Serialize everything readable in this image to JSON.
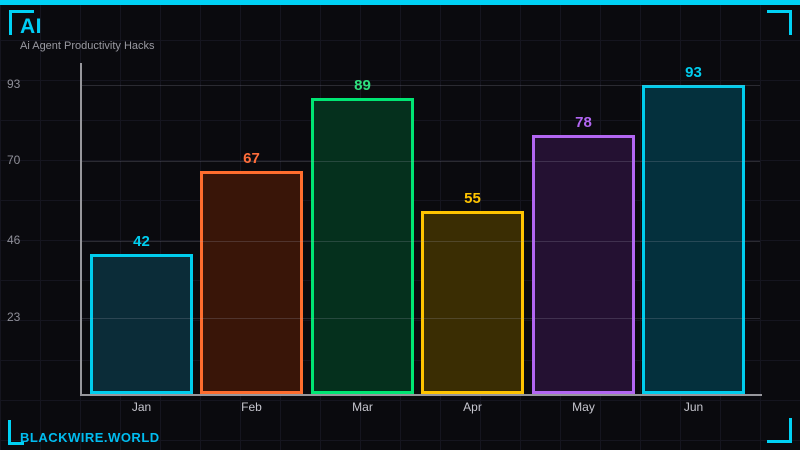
{
  "frame": {
    "title": "AI",
    "subtitle": "Ai Agent Productivity Hacks",
    "footer": "BLACKWIRE.WORLD",
    "accent_color": "#00d2f5",
    "background_color": "#0a0a0e",
    "axis_color": "#97979c"
  },
  "chart_data": {
    "type": "bar",
    "title": "Ai Agent Productivity Hacks",
    "categories": [
      "Jan",
      "Feb",
      "Mar",
      "Apr",
      "May",
      "Jun"
    ],
    "values": [
      42,
      67,
      89,
      55,
      78,
      93
    ],
    "bar_border_colors": [
      "#00cdee",
      "#ff6d2e",
      "#00e573",
      "#ffc400",
      "#b266f2",
      "#00cdee"
    ],
    "bar_fill_colors": [
      "#0b2c38",
      "#391508",
      "#05301d",
      "#3a2d03",
      "#241132",
      "#04303d"
    ],
    "value_label_colors": [
      "#00cdee",
      "#ff6d3a",
      "#2ee07d",
      "#ffc400",
      "#b266f2",
      "#00cdee"
    ],
    "xlabel": "",
    "ylabel": "",
    "yticks": [
      23,
      46,
      70,
      93
    ],
    "ylim": [
      0,
      100
    ],
    "grid": true,
    "legend": false
  }
}
